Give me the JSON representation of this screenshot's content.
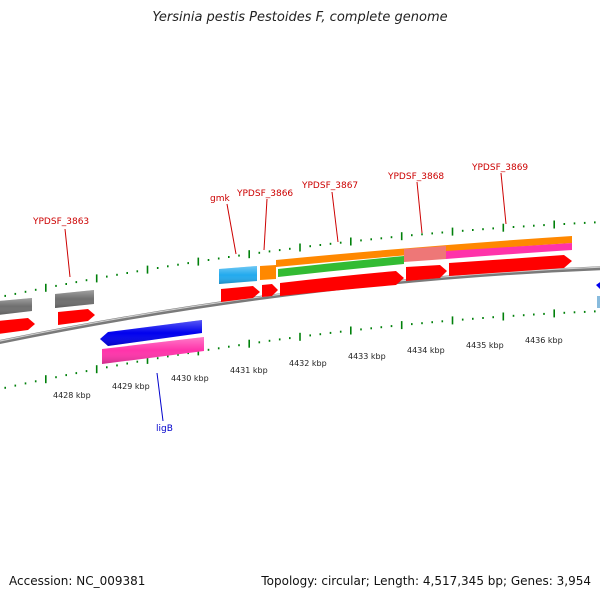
{
  "title": "Yersinia pestis Pestoides F, complete genome",
  "footer": {
    "accession": "Accession: NC_009381",
    "topology": "Topology: circular; Length: 4,517,345 bp; Genes: 3,954"
  },
  "colors": {
    "backbone": "#8c8c8c",
    "cds": "#ff0000",
    "gene_label_plus": "#cc0000",
    "gene_label_minus": "#0000cc",
    "tick": "#00800a",
    "blue": "#0000ee",
    "magenta": "#ff33aa",
    "gray": "#6f6f6f",
    "cyan": "#22aaee",
    "orange": "#ff8800",
    "green": "#33bb33",
    "pink": "#ee7777"
  },
  "ruler": {
    "labels": [
      "4428 kbp",
      "4429 kbp",
      "4430 kbp",
      "4431 kbp",
      "4432 kbp",
      "4433 kbp",
      "4434 kbp",
      "4435 kbp",
      "4436 kbp"
    ]
  },
  "gene_labels": [
    {
      "id": "ypdsf3863",
      "text": "YPDSF_3863",
      "strand": "plus"
    },
    {
      "id": "gmk",
      "text": "gmk",
      "strand": "plus"
    },
    {
      "id": "ypdsf3866",
      "text": "YPDSF_3866",
      "strand": "plus"
    },
    {
      "id": "ypdsf3867",
      "text": "YPDSF_3867",
      "strand": "plus"
    },
    {
      "id": "ypdsf3868",
      "text": "YPDSF_3868",
      "strand": "plus"
    },
    {
      "id": "ypdsf3869",
      "text": "YPDSF_3869",
      "strand": "plus"
    },
    {
      "id": "ligb",
      "text": "ligB",
      "strand": "minus"
    }
  ]
}
